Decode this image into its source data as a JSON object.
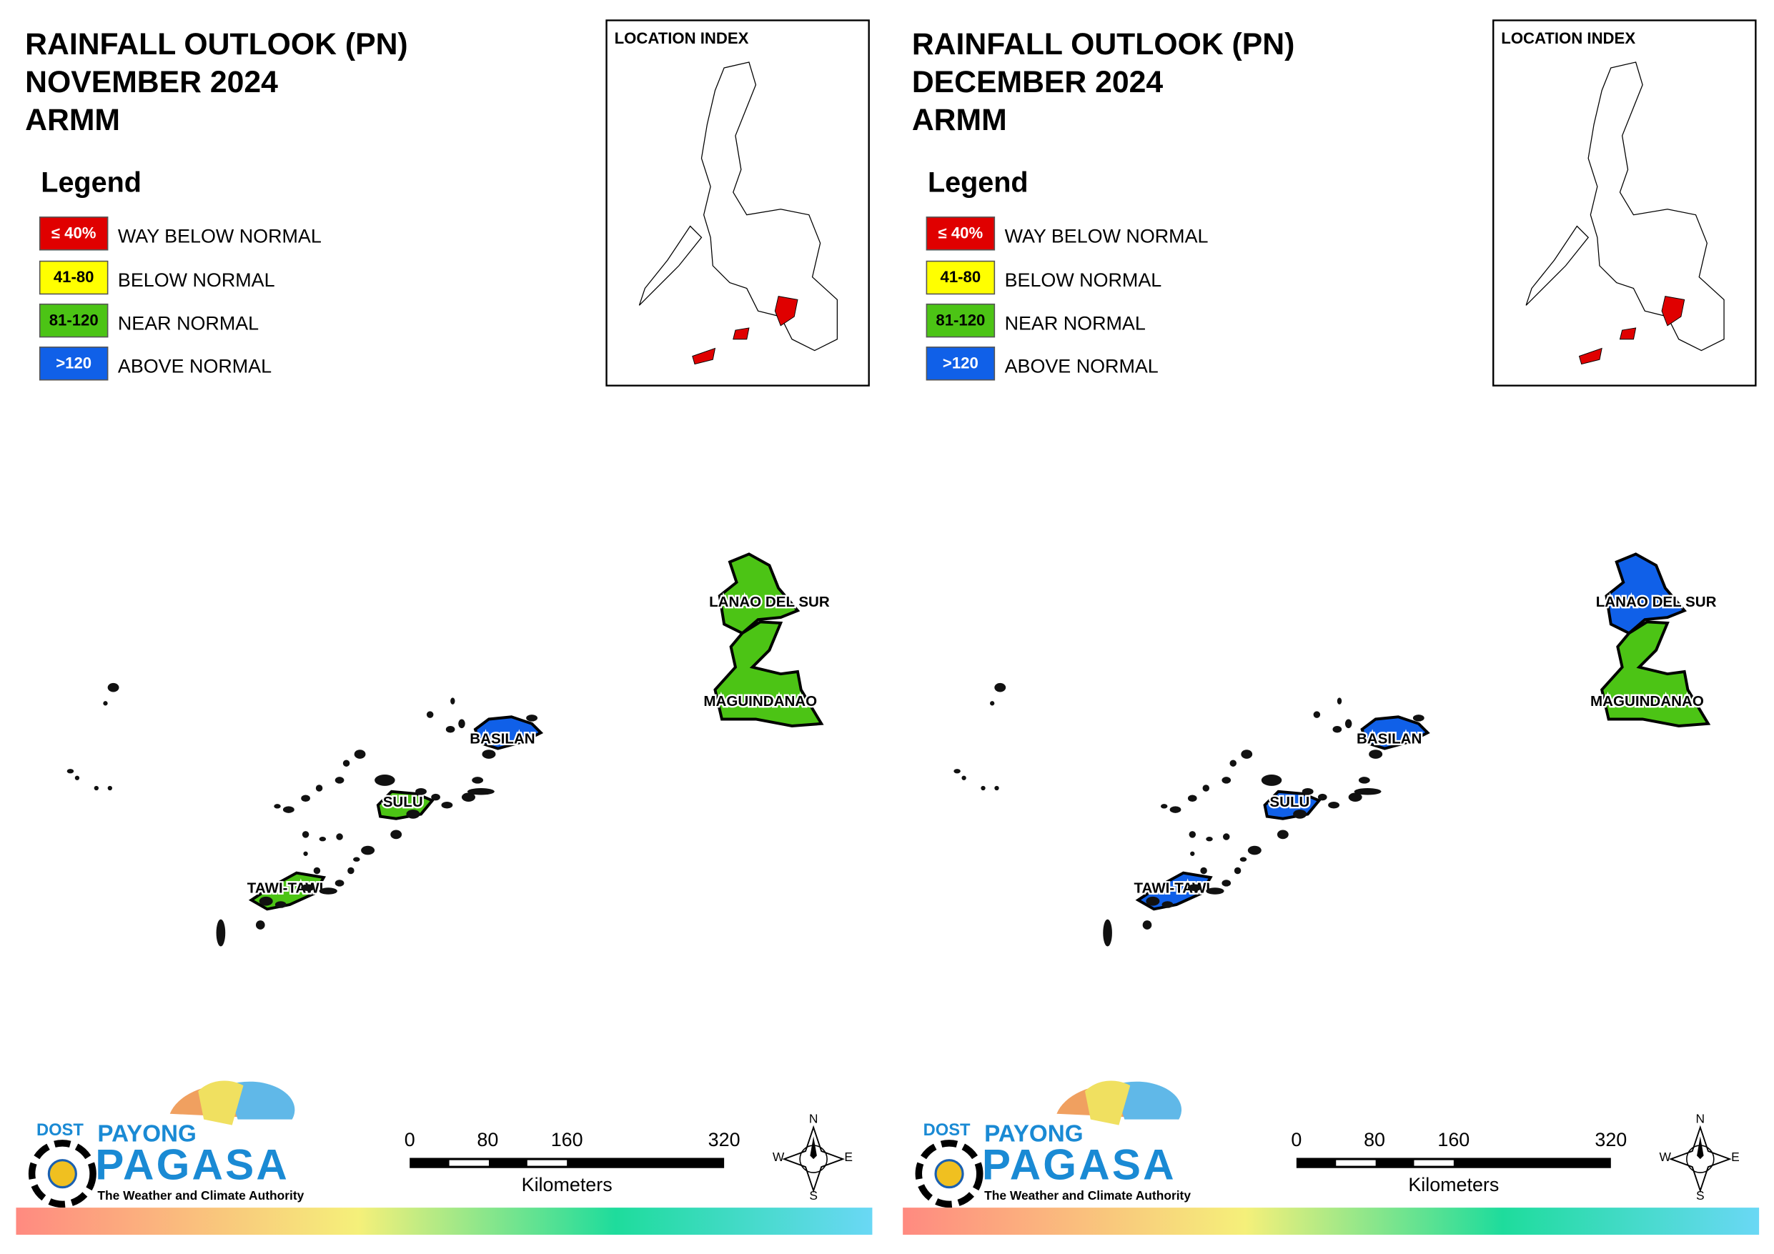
{
  "panels": [
    {
      "title": [
        "RAINFALL OUTLOOK (PN)",
        "NOVEMBER 2024",
        "ARMM"
      ],
      "legend": {
        "title": "Legend",
        "items": [
          {
            "range": "≤ 40%",
            "label": "WAY BELOW NORMAL",
            "color": "#e00000"
          },
          {
            "range": "41-80",
            "label": "BELOW NORMAL",
            "color": "#ffff00"
          },
          {
            "range": "81-120",
            "label": "NEAR NORMAL",
            "color": "#4cc415"
          },
          {
            "range": ">120",
            "label": "ABOVE NORMAL",
            "color": "#1060e8"
          }
        ]
      },
      "location_index": "LOCATION INDEX",
      "regions": [
        {
          "name": "LANAO DEL SUR",
          "color": "#4cc415"
        },
        {
          "name": "MAGUINDANAO",
          "color": "#4cc415"
        },
        {
          "name": "BASILAN",
          "color": "#1060e8"
        },
        {
          "name": "SULU",
          "color": "#4cc415"
        },
        {
          "name": "TAWI-TAWI",
          "color": "#4cc415"
        }
      ],
      "scale": {
        "ticks": [
          "0",
          "80",
          "160",
          "320"
        ],
        "unit": "Kilometers"
      },
      "compass": [
        "N",
        "E",
        "S",
        "W"
      ],
      "logo": {
        "agency": "DOST",
        "brand1": "PAYONG",
        "brand2": "PAGASA",
        "tagline": "The Weather and Climate Authority"
      }
    },
    {
      "title": [
        "RAINFALL OUTLOOK (PN)",
        "DECEMBER 2024",
        "ARMM"
      ],
      "legend": {
        "title": "Legend",
        "items": [
          {
            "range": "≤ 40%",
            "label": "WAY BELOW NORMAL",
            "color": "#e00000"
          },
          {
            "range": "41-80",
            "label": "BELOW NORMAL",
            "color": "#ffff00"
          },
          {
            "range": "81-120",
            "label": "NEAR NORMAL",
            "color": "#4cc415"
          },
          {
            "range": ">120",
            "label": "ABOVE NORMAL",
            "color": "#1060e8"
          }
        ]
      },
      "location_index": "LOCATION INDEX",
      "regions": [
        {
          "name": "LANAO DEL SUR",
          "color": "#1060e8"
        },
        {
          "name": "MAGUINDANAO",
          "color": "#4cc415"
        },
        {
          "name": "BASILAN",
          "color": "#1060e8"
        },
        {
          "name": "SULU",
          "color": "#1060e8"
        },
        {
          "name": "TAWI-TAWI",
          "color": "#1060e8"
        }
      ],
      "scale": {
        "ticks": [
          "0",
          "80",
          "160",
          "320"
        ],
        "unit": "Kilometers"
      },
      "compass": [
        "N",
        "E",
        "S",
        "W"
      ],
      "logo": {
        "agency": "DOST",
        "brand1": "PAYONG",
        "brand2": "PAGASA",
        "tagline": "The Weather and Climate Authority"
      }
    }
  ]
}
